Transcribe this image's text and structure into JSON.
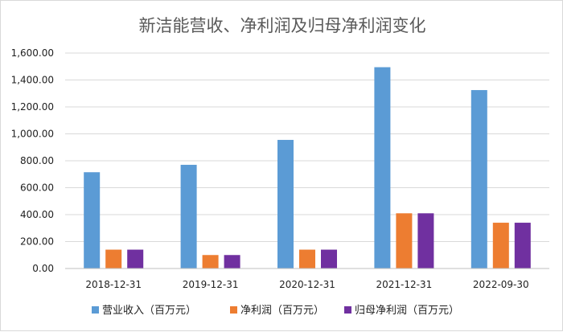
{
  "chart_data": {
    "type": "bar",
    "title": "新洁能营收、净利润及归母净利润变化",
    "categories": [
      "2018-12-31",
      "2019-12-31",
      "2020-12-31",
      "2021-12-31",
      "2022-09-30"
    ],
    "series": [
      {
        "name": "营业收入（百万元）",
        "color": "#5b9bd5",
        "values": [
          715,
          770,
          955,
          1495,
          1325
        ]
      },
      {
        "name": "净利润（百万元）",
        "color": "#ed7d31",
        "values": [
          140,
          100,
          140,
          410,
          340
        ]
      },
      {
        "name": "归母净利润（百万元）",
        "color": "#7030a0",
        "values": [
          140,
          100,
          140,
          410,
          340
        ]
      }
    ],
    "ylim": [
      0,
      1600
    ],
    "yticks": [
      0,
      200,
      400,
      600,
      800,
      1000,
      1200,
      1400,
      1600
    ],
    "ytick_labels": [
      "0.00",
      "200.00",
      "400.00",
      "600.00",
      "800.00",
      "1,000.00",
      "1,200.00",
      "1,400.00",
      "1,600.00"
    ],
    "grid": true,
    "legend_position": "bottom",
    "xlabel": "",
    "ylabel": ""
  }
}
